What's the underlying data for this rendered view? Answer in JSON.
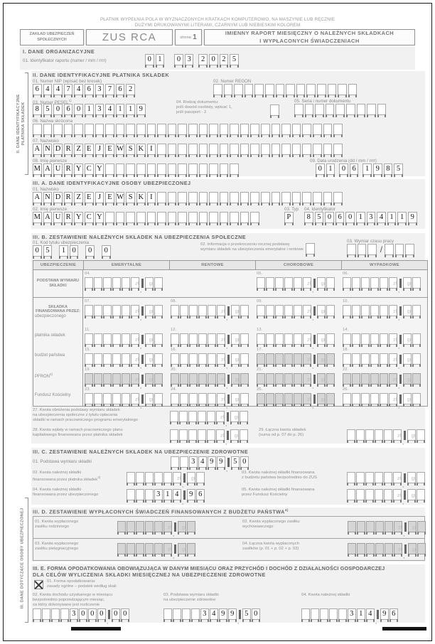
{
  "colors": {
    "section_bg": "#f1f1f1",
    "shaded_box": "#d6d6d6",
    "box_border": "#a9a9a9",
    "ink": "#161616",
    "label": "#8a8a8a"
  },
  "units": {
    "zl": "zł",
    "gr": "gr"
  },
  "note": {
    "line1": "PŁATNIK WYPEŁNIA POLA W WYZNACZONYCH KRATKACH KOMPUTEROWO, NA MASZYNIE LUB RĘCZNIE",
    "line2": "DUŻYMI DRUKOWANYMI LITERAMI, CZARNYM LUB NIEBIESKIM KOLOREM"
  },
  "header": {
    "org_l1": "ZAKŁAD UBEZPIECZEŃ",
    "org_l2": "SPOŁECZNYCH",
    "form_code": "ZUS RCA",
    "page_label": "strona:",
    "page_number": "1",
    "title_l1": "IMIENNY RAPORT MIESIĘCZNY O NALEŻNYCH SKŁADKACH",
    "title_l2": "I WYPŁACONYCH ŚWIADCZENIACH"
  },
  "sidebar": {
    "s2_l1": "II. DANE IDENTYFIKACYJNE",
    "s2_l2": "PŁATNIKA SKŁADEK",
    "s3": "III. DANE DOTYCZĄCE OSOBY UBEZPIECZONEJ"
  },
  "s1": {
    "title": "I. DANE ORGANIZACYJNE",
    "f01": {
      "label": "01. Identyfikator raportu (numer / mm / rrrr)",
      "groups": [
        "01",
        "03",
        "2025"
      ]
    }
  },
  "s2": {
    "title": "II. DANE IDENTYFIKACYJNE PŁATNIKA SKŁADEK",
    "f01": {
      "label": "01. Numer NIP (wpisać bez kresek)",
      "value": "6447463762"
    },
    "f02": {
      "label": "02. Numer REGON",
      "value": ""
    },
    "f03": {
      "label": "03. Numer PESEL",
      "sup": "1)",
      "value": "85060134119"
    },
    "f04": {
      "label_l1": "04. Rodzaj dokumentu:",
      "label_l2": "jeśli dowód osobisty, wpisać 1,",
      "label_l3": "jeśli paszport - 2",
      "value": ""
    },
    "f05": {
      "label": "05. Seria i numer dokumentu",
      "value": ""
    },
    "f06": {
      "label": "06. Nazwa skrócona",
      "value": ""
    },
    "f07": {
      "label": "07. Nazwisko",
      "value": "ANDRZEJEWSKI"
    },
    "f08": {
      "label": "08. Imię pierwsze",
      "value": "MAURYCY"
    },
    "f09": {
      "label": "09. Data urodzenia (dd / mm / rrrr)",
      "groups": [
        "01",
        "06",
        "1985"
      ]
    }
  },
  "s3a": {
    "title": "III. A. DANE IDENTYFIKACYJNE OSOBY UBEZPIECZONEJ",
    "f01": {
      "label": "01. Nazwisko",
      "value": "ANDRZEJEWSKI"
    },
    "f02": {
      "label": "02. Imię pierwsze",
      "value": "MAURYCY"
    },
    "f03": {
      "label": "03. Typ",
      "value": "P"
    },
    "f04": {
      "label": "04. Identyfikator",
      "value": "85060134119"
    }
  },
  "s3b": {
    "title": "III. B. ZESTAWIENIE NALEŻNYCH SKŁADEK NA UBEZPIECZENIA SPOŁECZNE",
    "f01": {
      "label": "01. Kod tytułu ubezpieczenia",
      "groups": [
        "05",
        "10",
        "0",
        "0"
      ]
    },
    "f02": {
      "label_l1": "02. Informacja o przekroczeniu rocznej podstawy",
      "label_l2": "wymiaru składek na ubezpieczenia emerytalne i rentowe",
      "value": ""
    },
    "f03": {
      "label": "03. Wymiar czasu pracy",
      "slash": "/",
      "value_num": "",
      "value_den": ""
    },
    "table": {
      "headers": [
        "UBEZPIECZENIE",
        "EMERYTALNE",
        "RENTOWE",
        "CHOROBOWE",
        "WYPADKOWE"
      ],
      "podstawa": {
        "label": "PODSTAWA WYMIARU SKŁADKI",
        "fields": [
          {
            "num": "04.",
            "value": "",
            "shaded": false
          },
          {
            "num": "05.",
            "value": "",
            "shaded": false
          },
          {
            "num": "06.",
            "value": "",
            "shaded": false
          }
        ]
      },
      "group_label": "SKŁADKA FINANSOWANA PRZEZ:",
      "rows": [
        {
          "label": "ubezpieczonego",
          "sup": "",
          "fields": [
            {
              "num": "07.",
              "value": "",
              "shaded": false
            },
            {
              "num": "08.",
              "value": "",
              "shaded": false
            },
            {
              "num": "09.",
              "value": "",
              "shaded": false
            },
            {
              "num": "10.",
              "value": "",
              "shaded": false
            }
          ]
        },
        {
          "label": "płatnika składek",
          "sup": "",
          "fields": [
            {
              "num": "11.",
              "value": "",
              "shaded": false
            },
            {
              "num": "12.",
              "value": "",
              "shaded": false
            },
            {
              "num": "13.",
              "value": "",
              "shaded": false
            },
            {
              "num": "14.",
              "value": "",
              "shaded": false
            }
          ]
        },
        {
          "label": "budżet państwa",
          "sup": "",
          "fields": [
            {
              "num": "15.",
              "value": "",
              "shaded": false
            },
            {
              "num": "16.",
              "value": "",
              "shaded": false
            },
            {
              "num": "17.",
              "value": "",
              "shaded": true
            },
            {
              "num": "18.",
              "value": "",
              "shaded": false
            }
          ]
        },
        {
          "label": "PFRON",
          "sup": "2)",
          "fields": [
            {
              "num": "19.",
              "value": "",
              "shaded": true
            },
            {
              "num": "20.",
              "value": "",
              "shaded": true
            },
            {
              "num": "21.",
              "value": "",
              "shaded": true
            },
            {
              "num": "22.",
              "value": "",
              "shaded": true
            }
          ]
        },
        {
          "label": "Fundusz Kościelny",
          "sup": "",
          "fields": [
            {
              "num": "23.",
              "value": "",
              "shaded": false
            },
            {
              "num": "24.",
              "value": "",
              "shaded": false
            },
            {
              "num": "25.",
              "value": "",
              "shaded": true
            },
            {
              "num": "26.",
              "value": "",
              "shaded": false
            }
          ]
        }
      ]
    },
    "f27": {
      "label_l1": "27. Kwota obniżenia podstawy wymiaru składek",
      "label_l2": "na ubezpieczenia społeczne z tytułu opłacania",
      "label_l3": "składki w ramach pracowniczego programu emerytalnego",
      "value": ""
    },
    "f28": {
      "label_l1": "28. Kwota wpłaty w ramach pracowniczego planu",
      "label_l2": "kapitałowego finansowana przez płatnika składek",
      "value": ""
    },
    "f29": {
      "label_l1": "29. Łączna kwota składek",
      "label_l2": "(suma od p. 07 do p. 26)",
      "value": ""
    }
  },
  "s3c": {
    "title": "III. C. ZESTAWIENIE NALEŻNYCH SKŁADEK NA UBEZPIECZENIE ZDROWOTNE",
    "f01": {
      "label": "01. Podstawa wymiaru składki",
      "value": "3499.50"
    },
    "f02": {
      "label_l1": "02. Kwota należnej składki",
      "label_l2": "finansowana przez płatnika składek",
      "sup": "3)",
      "value": ""
    },
    "f03": {
      "label_l1": "03. Kwota należnej składki finansowana",
      "label_l2": "z budżetu państwa bezpośrednio do ZUS",
      "value": ""
    },
    "f04": {
      "label_l1": "04. Kwota należnej składki",
      "label_l2": "finansowana przez ubezpieczonego",
      "value": "314.96"
    },
    "f05": {
      "label_l1": "05. Kwota należnej składki finansowana",
      "label_l2": "przez Fundusz Kościelny",
      "value": ""
    }
  },
  "s3d": {
    "title": "III. D. ZESTAWIENIE WYPŁACONYCH ŚWIADCZEŃ FINANSOWANYCH Z BUDŻETU PAŃSTWA",
    "sup": "4)",
    "f01": {
      "label_l1": "01. Kwota wypłaconego",
      "label_l2": "zasiłku rodzinnego",
      "value": ""
    },
    "f02": {
      "label_l1": "02. Kwota wypłaconego zasiłku",
      "label_l2": "wychowawczego",
      "value": ""
    },
    "f03": {
      "label_l1": "03. Kwota wypłaconego",
      "label_l2": "zasiłku pielęgnacyjnego",
      "value": ""
    },
    "f04": {
      "label_l1": "04. Łączna kwota wypłaconych",
      "label_l2": "zasiłków (p. 01 + p. 02 + p. 03)",
      "value": ""
    }
  },
  "s3e": {
    "title_l1": "III. E. FORMA OPODATKOWANIA OBOWIĄZUJĄCA W DANYM MIESIĄCU ORAZ PRZYCHÓD I DOCHÓD Z DZIAŁALNOŚCI GOSPODARCZEJ",
    "title_l2": "DLA CELÓW WYLICZENIA SKŁADKI MIESIĘCZNEJ NA UBEZPIECZENIE ZDROWOTNE",
    "checkbox": {
      "checked": true,
      "label_l1": "01. Forma opodatkowania:",
      "label_l2": "zasady ogólne – podatek według skali"
    },
    "f02": {
      "label_l1": "02. Kwota dochodu uzyskanego w miesiącu",
      "label_l2": "bezpośrednio poprzedzającym miesiąc,",
      "label_l3": "za który dokonywane jest rozliczenie",
      "value": "3000.00"
    },
    "f03": {
      "label_l1": "03. Podstawa wymiaru składki",
      "label_l2": "na ubezpieczenie zdrowotne",
      "value": "3499.50"
    },
    "f04": {
      "label": "04. Kwota należnej składki",
      "value": "314.96"
    }
  }
}
